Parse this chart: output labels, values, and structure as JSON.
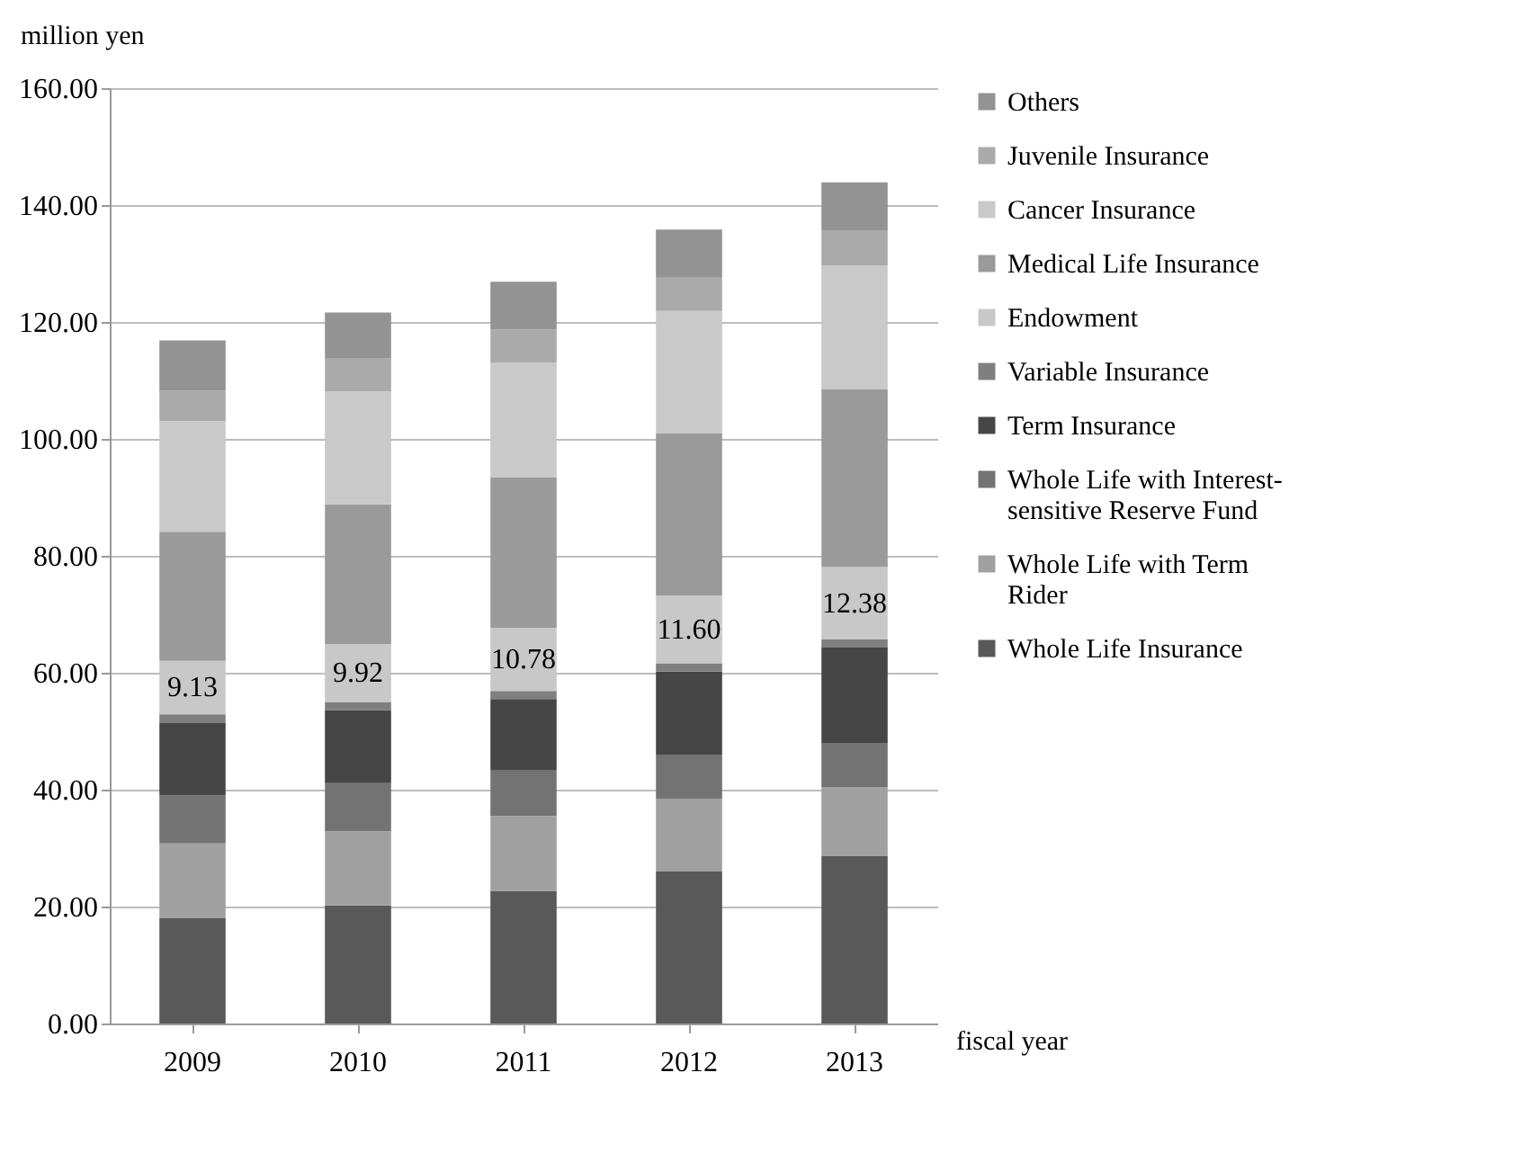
{
  "chart_data": {
    "type": "bar",
    "stacked": true,
    "xlabel": "fiscal year",
    "ylabel": "million yen",
    "categories": [
      "2009",
      "2010",
      "2011",
      "2012",
      "2013"
    ],
    "series": [
      {
        "name": "Whole Life Insurance",
        "color": "#595959",
        "values": [
          18.0,
          20.2,
          22.7,
          26.0,
          28.6
        ]
      },
      {
        "name": "Whole Life with Term Rider",
        "color": "#a0a0a0",
        "values": [
          12.8,
          12.7,
          12.8,
          12.4,
          11.8
        ]
      },
      {
        "name": "Whole Life with Interest-sensitive Reserve Fund",
        "color": "#737373",
        "values": [
          8.2,
          8.2,
          7.9,
          7.6,
          7.6
        ]
      },
      {
        "name": "Term Insurance",
        "color": "#464646",
        "values": [
          12.4,
          12.5,
          12.1,
          14.2,
          16.3
        ]
      },
      {
        "name": "Variable Insurance",
        "color": "#7f7f7f",
        "values": [
          1.5,
          1.4,
          1.4,
          1.4,
          1.4
        ]
      },
      {
        "name": "Endowment",
        "color": "#c8c8c8",
        "values": [
          9.13,
          9.92,
          10.78,
          11.6,
          12.38
        ],
        "value_labels": [
          "9.13",
          "9.92",
          "10.78",
          "11.60",
          "12.38"
        ]
      },
      {
        "name": "Medical Life Insurance",
        "color": "#9a9a9a",
        "values": [
          22.1,
          23.9,
          25.7,
          27.8,
          30.4
        ]
      },
      {
        "name": "Cancer Insurance",
        "color": "#c9c9c9",
        "values": [
          18.9,
          19.3,
          19.7,
          20.9,
          21.2
        ]
      },
      {
        "name": "Juvenile Insurance",
        "color": "#aaaaaa",
        "values": [
          5.2,
          5.6,
          5.6,
          5.8,
          6.0
        ]
      },
      {
        "name": "Others",
        "color": "#939393",
        "values": [
          8.6,
          7.9,
          8.2,
          8.1,
          8.2
        ]
      }
    ],
    "ylim": [
      0,
      160
    ],
    "yticks": [
      {
        "value": 0,
        "label": "0.00"
      },
      {
        "value": 20,
        "label": "20.00"
      },
      {
        "value": 40,
        "label": "40.00"
      },
      {
        "value": 60,
        "label": "60.00"
      },
      {
        "value": 80,
        "label": "80.00"
      },
      {
        "value": 100,
        "label": "100.00"
      },
      {
        "value": 120,
        "label": "120.00"
      },
      {
        "value": 140,
        "label": "140.00"
      },
      {
        "value": 160,
        "label": "160.00"
      }
    ],
    "grid": "y",
    "legend": "right"
  }
}
